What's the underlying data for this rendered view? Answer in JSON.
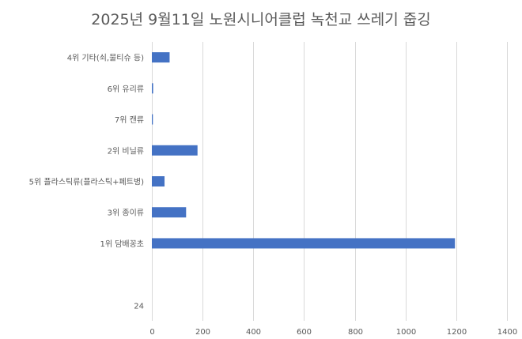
{
  "chart_data": {
    "type": "bar",
    "orientation": "horizontal",
    "title": "2025년 9월11일 노원시니어클럽 녹천교 쓰레기 줍깅",
    "categories": [
      "4위 기타(쇠,물티슈 등)",
      "6위 유리류",
      "7위 캔류",
      "2위 비닐류",
      "5위 플라스틱류(플라스틱+페트병)",
      "3위 종이류",
      "1위 담배꽁초",
      "",
      "24"
    ],
    "series": [
      {
        "values": [
          70,
          5,
          4,
          180,
          50,
          135,
          1195,
          null,
          null
        ],
        "color": "#4472C4"
      }
    ],
    "xlim": [
      0,
      1400
    ],
    "x_ticks": [
      0,
      200,
      400,
      600,
      800,
      1000,
      1200,
      1400
    ],
    "xlabel": "",
    "ylabel": "",
    "grid": "vertical",
    "legend": "none"
  }
}
